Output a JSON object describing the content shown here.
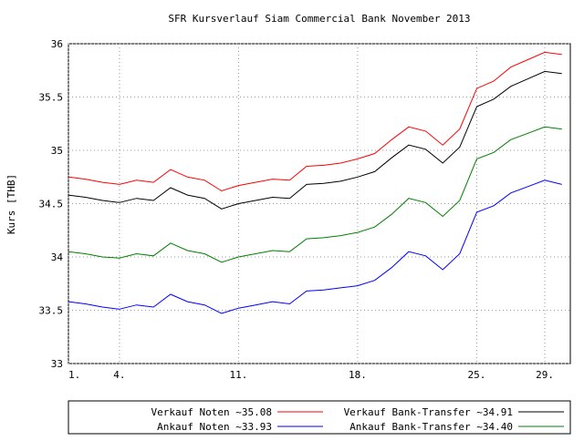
{
  "chart_data": {
    "type": "line",
    "title": "SFR Kursverlauf Siam Commercial Bank November 2013",
    "y_label": "Kurs [THB]",
    "x": [
      1,
      2,
      3,
      4,
      5,
      6,
      7,
      8,
      9,
      10,
      11,
      12,
      13,
      14,
      15,
      16,
      17,
      18,
      19,
      20,
      21,
      22,
      23,
      24,
      25,
      26,
      27,
      28,
      29,
      30
    ],
    "xlim": [
      1,
      30.5
    ],
    "xticks": [
      {
        "value": 1,
        "label": "1."
      },
      {
        "value": 4,
        "label": "4."
      },
      {
        "value": 11,
        "label": "11."
      },
      {
        "value": 18,
        "label": "18."
      },
      {
        "value": 25,
        "label": "25."
      },
      {
        "value": 29,
        "label": "29."
      }
    ],
    "ylim": [
      33,
      36
    ],
    "yticks": [
      33,
      33.5,
      34,
      34.5,
      35,
      35.5,
      36
    ],
    "grid": true,
    "series": [
      {
        "name": "Verkauf Noten ~35.08",
        "color": "#ff0000",
        "values": [
          34.75,
          34.73,
          34.7,
          34.68,
          34.72,
          34.7,
          34.82,
          34.75,
          34.72,
          34.62,
          34.67,
          34.7,
          34.73,
          34.72,
          34.85,
          34.86,
          34.88,
          34.92,
          34.97,
          35.1,
          35.22,
          35.18,
          35.05,
          35.2,
          35.58,
          35.65,
          35.78,
          35.85,
          35.92,
          35.9
        ]
      },
      {
        "name": "Verkauf Bank-Transfer ~34.91",
        "color": "#000000",
        "values": [
          34.58,
          34.56,
          34.53,
          34.51,
          34.55,
          34.53,
          34.65,
          34.58,
          34.55,
          34.45,
          34.5,
          34.53,
          34.56,
          34.55,
          34.68,
          34.69,
          34.71,
          34.75,
          34.8,
          34.93,
          35.05,
          35.01,
          34.88,
          35.03,
          35.41,
          35.48,
          35.6,
          35.67,
          35.74,
          35.72
        ]
      },
      {
        "name": "Ankauf Noten ~33.93",
        "color": "#0000ff",
        "values": [
          33.58,
          33.56,
          33.53,
          33.51,
          33.55,
          33.53,
          33.65,
          33.58,
          33.55,
          33.47,
          33.52,
          33.55,
          33.58,
          33.56,
          33.68,
          33.69,
          33.71,
          33.73,
          33.78,
          33.9,
          34.05,
          34.01,
          33.88,
          34.03,
          34.42,
          34.48,
          34.6,
          34.66,
          34.72,
          34.68
        ]
      },
      {
        "name": "Ankauf Bank-Transfer ~34.40",
        "color": "#008000",
        "values": [
          34.05,
          34.03,
          34.0,
          33.99,
          34.03,
          34.01,
          34.13,
          34.06,
          34.03,
          33.95,
          34.0,
          34.03,
          34.06,
          34.05,
          34.17,
          34.18,
          34.2,
          34.23,
          34.28,
          34.4,
          34.55,
          34.51,
          34.38,
          34.53,
          34.92,
          34.98,
          35.1,
          35.16,
          35.22,
          35.2
        ]
      }
    ]
  }
}
